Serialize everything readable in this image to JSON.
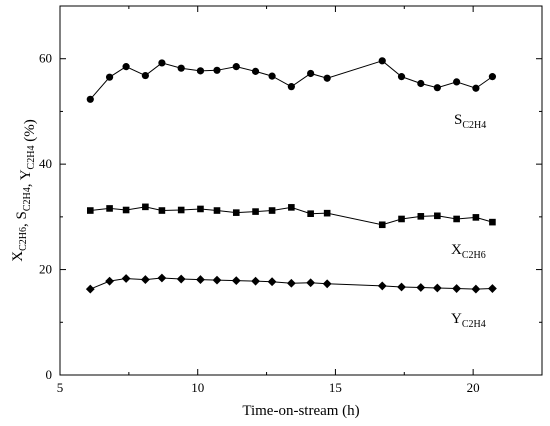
{
  "chart_data": {
    "type": "line",
    "title": "",
    "xlabel": "Time-on-stream (h)",
    "ylabel": {
      "parts": [
        {
          "t": "X",
          "sub": "C2H6"
        },
        {
          "t": ", S",
          "sub": "C2H4"
        },
        {
          "t": ", Y",
          "sub": "C2H4"
        },
        {
          "t": " (%)",
          "sub": ""
        }
      ]
    },
    "xlim": [
      5,
      22.5
    ],
    "ylim": [
      0,
      70
    ],
    "xticks": [
      5,
      10,
      15,
      20
    ],
    "yticks": [
      0,
      20,
      40,
      60
    ],
    "grid": false,
    "series": [
      {
        "name": "S",
        "sub": "C2H4",
        "marker": "circle",
        "x": [
          6.1,
          6.8,
          7.4,
          8.1,
          8.7,
          9.4,
          10.1,
          10.7,
          11.4,
          12.1,
          12.7,
          13.4,
          14.1,
          14.7,
          16.7,
          17.4,
          18.1,
          18.7,
          19.4,
          20.1,
          20.7
        ],
        "values": [
          52.3,
          56.5,
          58.5,
          56.8,
          59.2,
          58.2,
          57.7,
          57.8,
          58.5,
          57.6,
          56.7,
          54.7,
          57.2,
          56.3,
          59.6,
          56.6,
          55.3,
          54.5,
          55.6,
          54.4,
          56.6
        ]
      },
      {
        "name": "X",
        "sub": "C2H6",
        "marker": "square",
        "x": [
          6.1,
          6.8,
          7.4,
          8.1,
          8.7,
          9.4,
          10.1,
          10.7,
          11.4,
          12.1,
          12.7,
          13.4,
          14.1,
          14.7,
          16.7,
          17.4,
          18.1,
          18.7,
          19.4,
          20.1,
          20.7
        ],
        "values": [
          31.2,
          31.6,
          31.3,
          31.9,
          31.2,
          31.3,
          31.5,
          31.2,
          30.8,
          31.0,
          31.2,
          31.8,
          30.6,
          30.7,
          28.5,
          29.6,
          30.1,
          30.2,
          29.6,
          29.9,
          29.0
        ]
      },
      {
        "name": "Y",
        "sub": "C2H4",
        "marker": "diamond",
        "x": [
          6.1,
          6.8,
          7.4,
          8.1,
          8.7,
          9.4,
          10.1,
          10.7,
          11.4,
          12.1,
          12.7,
          13.4,
          14.1,
          14.7,
          16.7,
          17.4,
          18.1,
          18.7,
          19.4,
          20.1,
          20.7
        ],
        "values": [
          16.3,
          17.8,
          18.3,
          18.1,
          18.4,
          18.2,
          18.1,
          18.0,
          17.9,
          17.8,
          17.7,
          17.4,
          17.5,
          17.3,
          16.9,
          16.7,
          16.6,
          16.5,
          16.4,
          16.3,
          16.4
        ]
      }
    ]
  }
}
